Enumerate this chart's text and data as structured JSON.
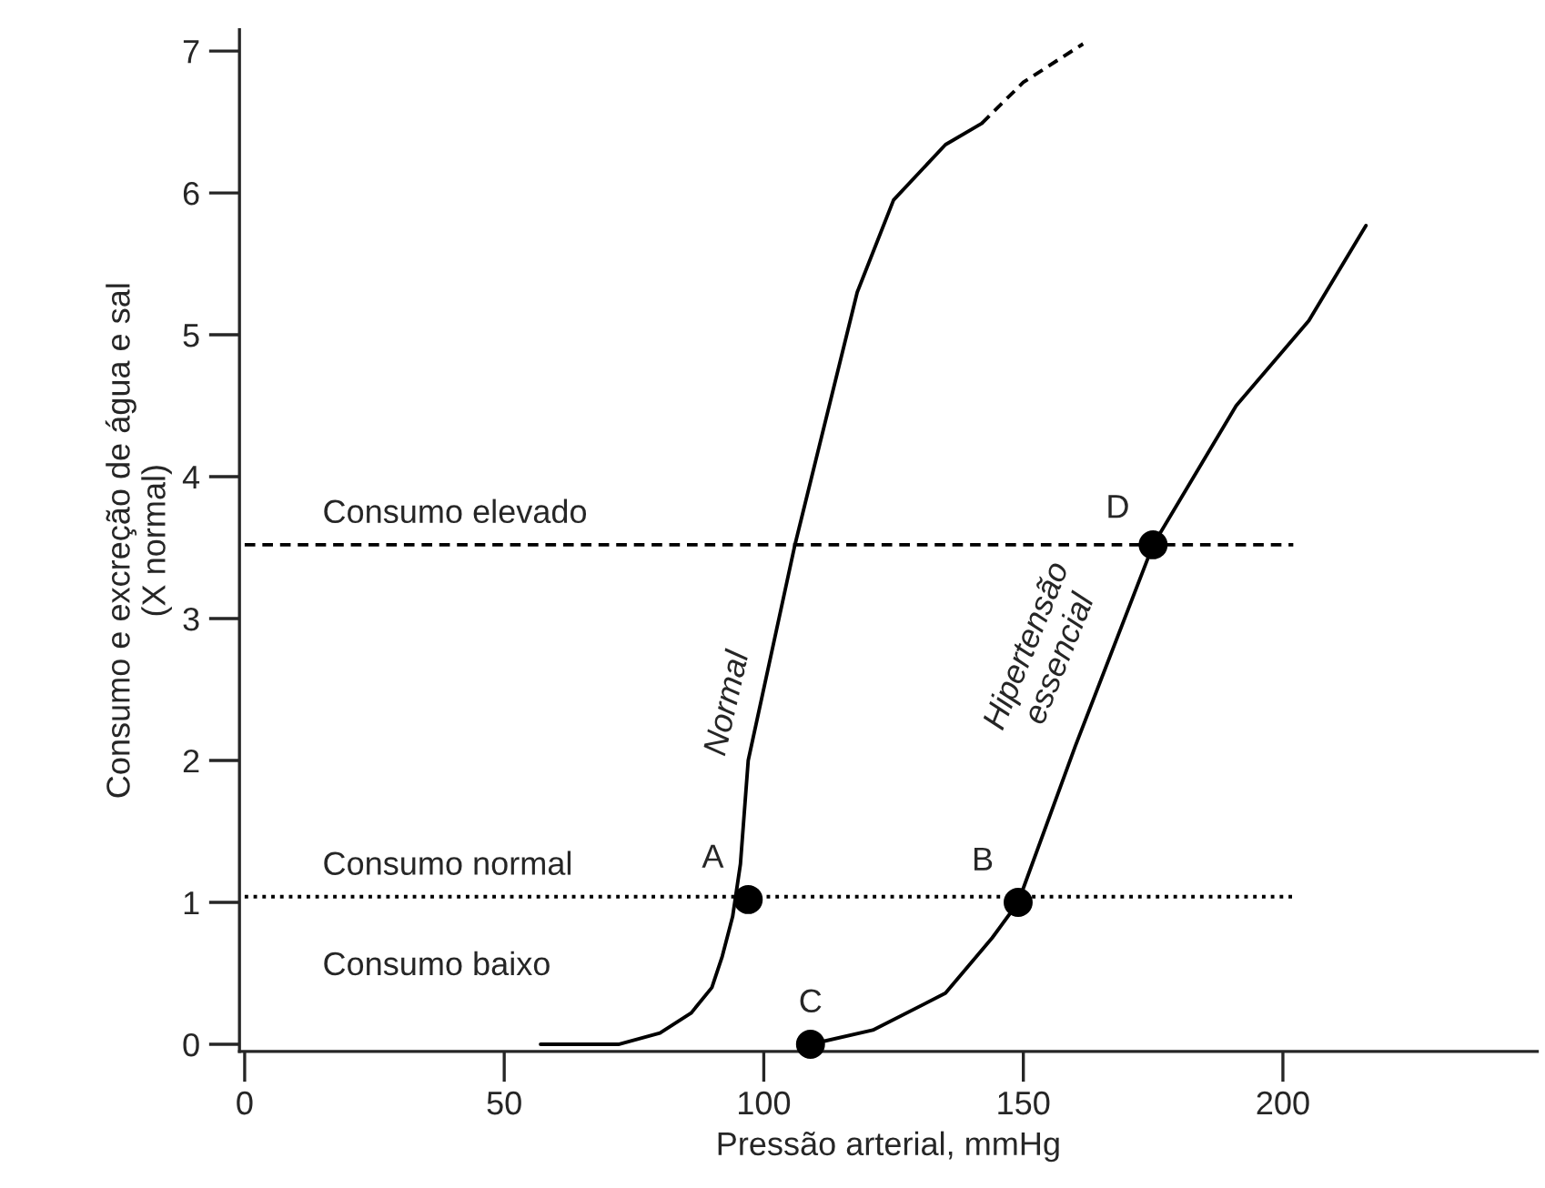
{
  "chart_data": {
    "type": "line",
    "xlabel": "Pressão arterial, mmHg",
    "ylabel": "Consumo e excreção de água e sal\n(X normal)",
    "xlim": [
      -1,
      249
    ],
    "ylim": [
      -0.05,
      7.15
    ],
    "xticks": [
      0,
      50,
      100,
      150,
      200
    ],
    "yticks": [
      0,
      1,
      2,
      3,
      4,
      5,
      6,
      7
    ],
    "grid": false,
    "legend": false,
    "series": [
      {
        "color": "#000000",
        "line_style": "solid",
        "marker": "none",
        "x": [
          57,
          72,
          80,
          86,
          90,
          92,
          94,
          95.5,
          97,
          106,
          118,
          125,
          135,
          142
        ],
        "values": [
          0,
          0,
          0.08,
          0.22,
          0.4,
          0.62,
          0.9,
          1.27,
          2.0,
          3.52,
          5.3,
          5.95,
          6.34,
          6.49
        ]
      },
      {
        "color": "#000000",
        "line_style": "dashed",
        "marker": "none",
        "x": [
          142,
          150,
          161.5
        ],
        "values": [
          6.49,
          6.78,
          7.05
        ]
      },
      {
        "color": "#000000",
        "line_style": "solid",
        "marker": "none",
        "x": [
          109,
          121,
          135,
          144,
          149,
          160,
          175,
          191,
          205,
          216
        ],
        "values": [
          0,
          0.1,
          0.36,
          0.75,
          1.0,
          2.1,
          3.52,
          4.5,
          5.1,
          5.77
        ]
      },
      {
        "color": "#000000",
        "line_style": "dashed",
        "marker": "none",
        "x": [
          0,
          202
        ],
        "values": [
          3.52,
          3.52
        ]
      },
      {
        "color": "#000000",
        "line_style": "dotted",
        "marker": "none",
        "x": [
          0,
          202
        ],
        "values": [
          1.04,
          1.04
        ]
      },
      {
        "type": "scatter",
        "color": "#000000",
        "marker": "circle",
        "x": [
          97,
          149,
          109,
          175
        ],
        "values": [
          1.02,
          1.0,
          0,
          3.52
        ]
      }
    ],
    "annotations": [
      {
        "text": "A",
        "x": 97,
        "y": 1.02
      },
      {
        "text": "B",
        "x": 149,
        "y": 1.0
      },
      {
        "text": "C",
        "x": 109,
        "y": 0
      },
      {
        "text": "D",
        "x": 175,
        "y": 3.52
      },
      {
        "text": "Consumo elevado",
        "x": 15,
        "y": 3.52
      },
      {
        "text": "Consumo normal",
        "x": 15,
        "y": 1.04
      },
      "Consumo baixo",
      {
        "text": "Normal",
        "x": 99,
        "y": 2.4
      },
      "Hipertensão\nessencial"
    ]
  }
}
